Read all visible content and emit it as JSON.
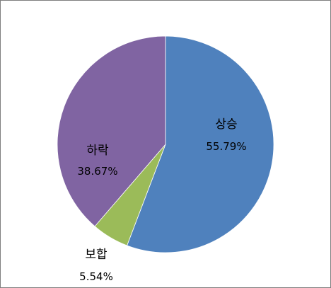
{
  "chart_data": {
    "type": "pie",
    "title": "",
    "categories": [
      "상승",
      "보합",
      "하락"
    ],
    "values": [
      55.79,
      5.54,
      38.67
    ],
    "value_labels": [
      "55.79%",
      "5.54%",
      "38.67%"
    ],
    "colors": [
      "#4f81bd",
      "#9bbb59",
      "#8064a2"
    ],
    "legend": "none",
    "start_angle_deg": 0,
    "direction": "clockwise"
  }
}
